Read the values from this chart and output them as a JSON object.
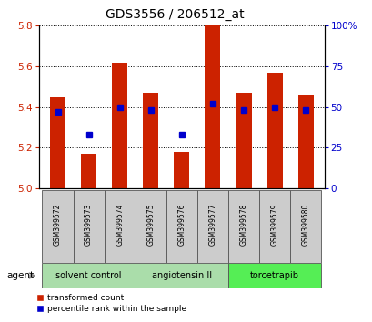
{
  "title": "GDS3556 / 206512_at",
  "samples": [
    "GSM399572",
    "GSM399573",
    "GSM399574",
    "GSM399575",
    "GSM399576",
    "GSM399577",
    "GSM399578",
    "GSM399579",
    "GSM399580"
  ],
  "red_values": [
    5.45,
    5.17,
    5.62,
    5.47,
    5.18,
    5.8,
    5.47,
    5.57,
    5.46
  ],
  "blue_pct": [
    47,
    33,
    50,
    48,
    33,
    52,
    48,
    50,
    48
  ],
  "y_min": 5.0,
  "y_max": 5.8,
  "y_ticks": [
    5.0,
    5.2,
    5.4,
    5.6,
    5.8
  ],
  "right_y_ticks": [
    0,
    25,
    50,
    75,
    100
  ],
  "bar_color": "#cc2200",
  "dot_color": "#0000cc",
  "groups": [
    {
      "label": "solvent control",
      "start": 0,
      "end": 2,
      "color": "#aaddaa"
    },
    {
      "label": "angiotensin II",
      "start": 3,
      "end": 5,
      "color": "#aaddaa"
    },
    {
      "label": "torcetrapib",
      "start": 6,
      "end": 8,
      "color": "#55ee55"
    }
  ],
  "legend_red": "transformed count",
  "legend_blue": "percentile rank within the sample",
  "xlabel_agent": "agent",
  "bar_width": 0.5,
  "base_value": 5.0,
  "title_fontsize": 10,
  "tick_fontsize": 7.5,
  "sample_fontsize": 5.5,
  "group_fontsize": 7,
  "legend_fontsize": 6.5
}
